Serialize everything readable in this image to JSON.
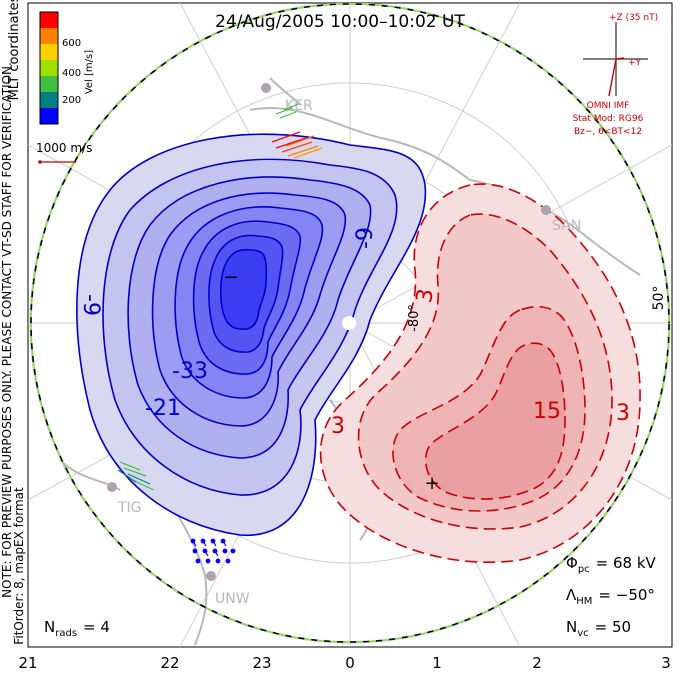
{
  "title": "24/Aug/2005 10:00–10:02 UT",
  "colorbar": {
    "label": "Vel [m/s]",
    "ticks": [
      "600",
      "400",
      "200"
    ],
    "colors": [
      "#ff0000",
      "#ff8000",
      "#ffd000",
      "#a0e000",
      "#40c040",
      "#008080",
      "#0000ff"
    ]
  },
  "coord_label": "MLT coordinates",
  "ref_vector": "1000 m/s",
  "imf": {
    "z_label": "+Z (35 nT)",
    "y_label": "+Y",
    "source": "OMNI IMF",
    "model": "Stat Mod: RG96",
    "condition": "Bz−, 6<BT<12",
    "color": "#cc0000"
  },
  "note_lines": [
    "NOTE: FOR PREVIEW PURPOSES ONLY. PLEASE CONTACT VT-SD STAFF FOR VERIFICATION.",
    "FitOrder: 8, mapEX format"
  ],
  "stations": [
    "KER",
    "SAN",
    "TIG",
    "UNW"
  ],
  "latitude_labels": [
    "-80°",
    "50°"
  ],
  "contour_labels": {
    "negative": [
      "-9",
      "-9",
      "-33",
      "-21"
    ],
    "positive": [
      "3",
      "15",
      "3",
      "3"
    ],
    "min_marker": "−",
    "max_marker": "+"
  },
  "stats": {
    "phi_pc_symbol": "Φ",
    "phi_pc_sub": "pc",
    "phi_pc_value": "= 68 kV",
    "lambda_symbol": "Λ",
    "lambda_sub": "HM",
    "lambda_value": "= −50°",
    "nvc_symbol": "N",
    "nvc_sub": "vc",
    "nvc_value": "= 50",
    "nrads_symbol": "N",
    "nrads_sub": "rads",
    "nrads_value": "= 4"
  },
  "mlt_ticks": [
    "21",
    "22",
    "23",
    "0",
    "1",
    "2",
    "3"
  ],
  "colors": {
    "negative_line": "#0000cc",
    "positive_line": "#cc0000",
    "negative_fill": "#3a3af0",
    "positive_fill": "#f08080",
    "boundary": "#80e040"
  }
}
